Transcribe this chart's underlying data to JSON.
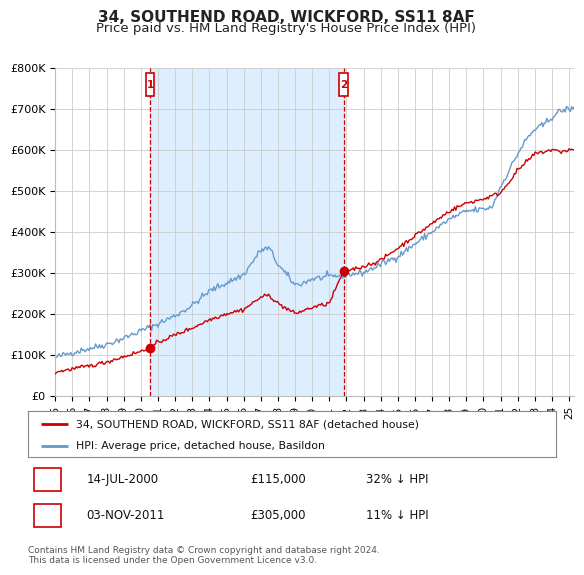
{
  "title": "34, SOUTHEND ROAD, WICKFORD, SS11 8AF",
  "subtitle": "Price paid vs. HM Land Registry's House Price Index (HPI)",
  "ylim": [
    0,
    800000
  ],
  "yticks": [
    0,
    100000,
    200000,
    300000,
    400000,
    500000,
    600000,
    700000,
    800000
  ],
  "ytick_labels": [
    "£0",
    "£100K",
    "£200K",
    "£300K",
    "£400K",
    "£500K",
    "£600K",
    "£700K",
    "£800K"
  ],
  "xlim_start": 1995.0,
  "xlim_end": 2025.3,
  "sale1_year": 2000.54,
  "sale1_price": 115000,
  "sale1_label": "1",
  "sale1_date": "14-JUL-2000",
  "sale1_pct": "32% ↓ HPI",
  "sale2_year": 2011.84,
  "sale2_price": 305000,
  "sale2_label": "2",
  "sale2_date": "03-NOV-2011",
  "sale2_pct": "11% ↓ HPI",
  "red_line_color": "#cc0000",
  "blue_line_color": "#6699cc",
  "vline_color": "#cc0000",
  "marker_color": "#cc0000",
  "shaded_fill_color": "#ddeeff",
  "hatch_color": "#aaaaaa",
  "legend_label_red": "34, SOUTHEND ROAD, WICKFORD, SS11 8AF (detached house)",
  "legend_label_blue": "HPI: Average price, detached house, Basildon",
  "footnote": "Contains HM Land Registry data © Crown copyright and database right 2024.\nThis data is licensed under the Open Government Licence v3.0.",
  "bg_color": "#ffffff",
  "grid_color": "#cccccc",
  "title_fontsize": 11,
  "subtitle_fontsize": 9.5
}
